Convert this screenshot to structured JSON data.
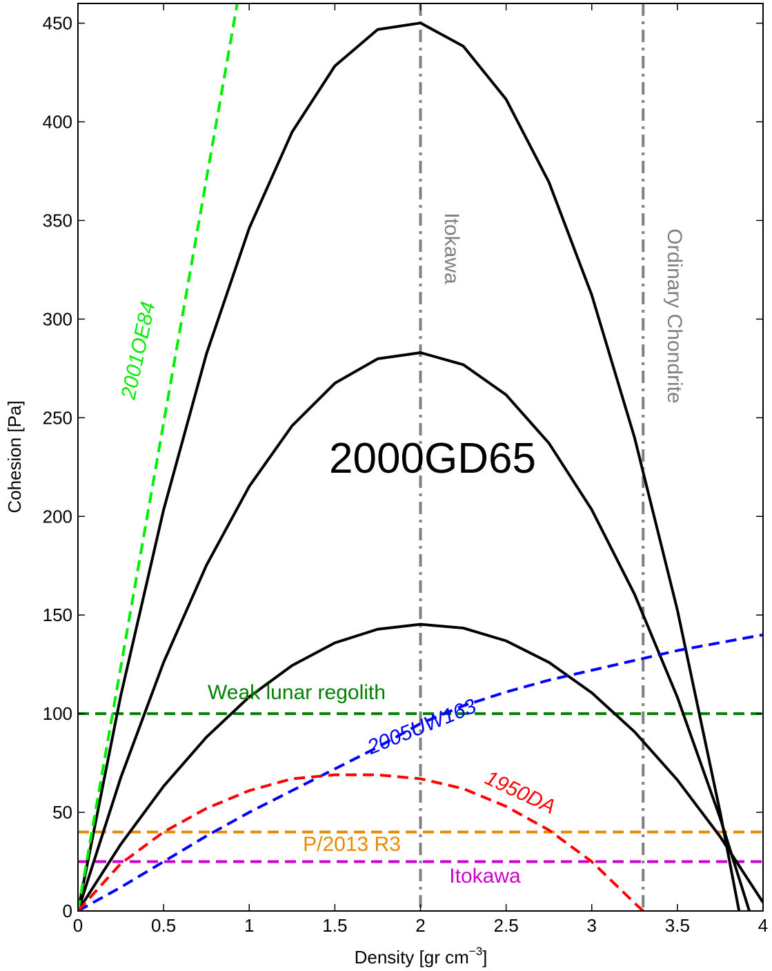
{
  "chart_data": {
    "type": "line",
    "xlabel": [
      "Density [gr cm",
      "−3",
      "]"
    ],
    "ylabel": "Cohesion [Pa]",
    "annotation": "2000GD65",
    "xlim": [
      0,
      4
    ],
    "xticks": [
      0,
      0.5,
      1,
      1.5,
      2,
      2.5,
      3,
      3.5,
      4
    ],
    "ylim": [
      0,
      460
    ],
    "yticks": [
      0,
      50,
      100,
      150,
      200,
      250,
      300,
      350,
      400,
      450
    ],
    "series": [
      {
        "color": "#000000",
        "style": "solid",
        "x": [
          0,
          0.25,
          0.5,
          0.75,
          1,
          1.25,
          1.5,
          1.75,
          2,
          2.25,
          2.5,
          2.75,
          3,
          3.25,
          3.5,
          3.75,
          3.86
        ],
        "values": [
          0,
          109.2,
          203.3,
          282.3,
          346.1,
          394.8,
          428.3,
          446.8,
          450.1,
          438.3,
          411.4,
          369.4,
          312.2,
          239.9,
          152.5,
          49.9,
          0
        ]
      },
      {
        "color": "#000000",
        "style": "solid",
        "x": [
          0,
          0.25,
          0.5,
          0.75,
          1,
          1.25,
          1.5,
          1.75,
          2,
          2.25,
          2.5,
          2.75,
          3,
          3.25,
          3.5,
          3.75,
          3.92
        ],
        "values": [
          0,
          67.6,
          126.0,
          175.2,
          215.2,
          245.9,
          267.5,
          279.9,
          283.0,
          276.9,
          261.6,
          237.1,
          203.4,
          160.5,
          108.3,
          47.0,
          0
        ]
      },
      {
        "color": "#000000",
        "style": "solid",
        "x": [
          0,
          0.25,
          0.5,
          0.75,
          1,
          1.25,
          1.5,
          1.75,
          2,
          2.25,
          2.5,
          2.75,
          3,
          3.25,
          3.5,
          3.75,
          4
        ],
        "values": [
          0,
          33.8,
          63.2,
          88.1,
          108.5,
          124.4,
          135.9,
          142.8,
          145.3,
          143.4,
          136.9,
          126.0,
          110.6,
          90.8,
          66.4,
          37.6,
          4.3
        ]
      },
      {
        "name": "2001OE84",
        "color": "#00ee00",
        "style": "dashed",
        "x": [
          0,
          0.93
        ],
        "values": [
          0,
          460
        ]
      },
      {
        "name": "2005UW163",
        "color": "#0000ff",
        "style": "dashed",
        "x": [
          0,
          0.25,
          0.5,
          0.75,
          1,
          1.25,
          1.5,
          1.75,
          2,
          2.25,
          2.5,
          2.75,
          3,
          3.25,
          3.5,
          3.75,
          4
        ],
        "values": [
          0,
          12,
          25,
          38,
          50,
          61,
          72,
          83,
          95,
          104,
          111,
          117,
          122,
          127,
          132,
          136,
          140
        ]
      },
      {
        "name": "1950DA",
        "color": "#ff0000",
        "style": "dashed",
        "x": [
          0,
          0.25,
          0.5,
          0.75,
          1,
          1.25,
          1.5,
          1.75,
          2,
          2.25,
          2.5,
          2.75,
          3,
          3.25,
          3.3
        ],
        "values": [
          0,
          24,
          40,
          52,
          61,
          67,
          69,
          69,
          67,
          62,
          53,
          41,
          25,
          4,
          0
        ]
      }
    ],
    "hlines": [
      {
        "value": 100,
        "label": "Weak lunar regolith",
        "color": "#008000"
      },
      {
        "value": 40,
        "label": "P/2013 R3",
        "color": "#e68a00"
      },
      {
        "value": 25,
        "label": "Itokawa",
        "color": "#cc00cc"
      }
    ],
    "vlines": [
      {
        "value": 2,
        "label": "Itokawa",
        "color": "#808080"
      },
      {
        "value": 3.3,
        "label": "Ordinary Chondrite",
        "color": "#808080"
      }
    ]
  }
}
